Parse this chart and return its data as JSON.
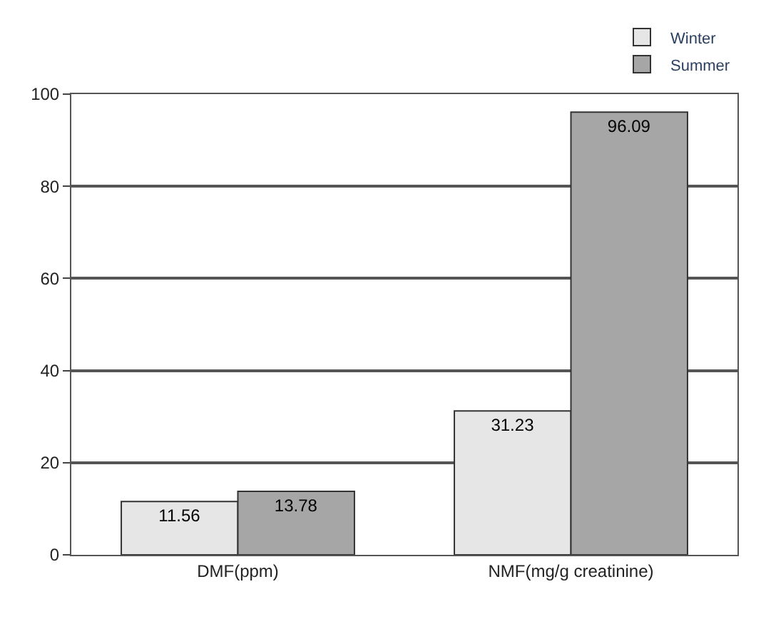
{
  "chart_data": {
    "type": "bar",
    "categories": [
      "DMF(ppm)",
      "NMF(mg/g creatinine)"
    ],
    "series": [
      {
        "name": "Winter",
        "color": "#e6e6e6",
        "values": [
          11.56,
          31.23
        ]
      },
      {
        "name": "Summer",
        "color": "#a6a6a6",
        "values": [
          13.78,
          96.09
        ]
      }
    ],
    "ylim": [
      0,
      100
    ],
    "yticks": [
      0,
      20,
      40,
      60,
      80,
      100
    ],
    "grid": "y",
    "legend": "top right",
    "data_labels": true
  }
}
